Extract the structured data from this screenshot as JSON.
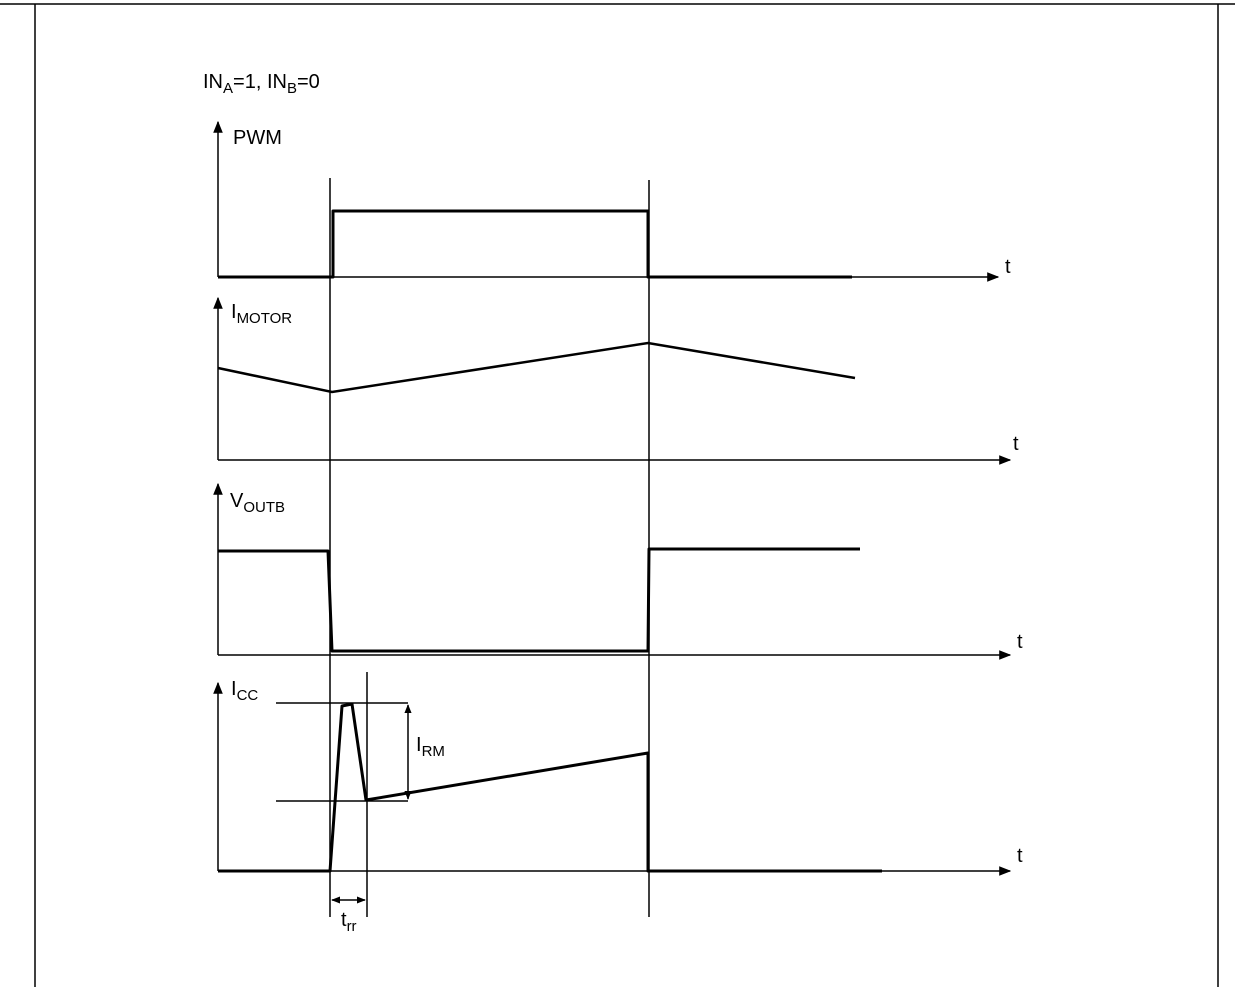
{
  "condition": {
    "in_a": "IN",
    "in_a_sub": "A",
    "in_a_val": "=1, ",
    "in_b": "IN",
    "in_b_sub": "B",
    "in_b_val": "=0"
  },
  "traces": {
    "pwm": {
      "label": "PWM"
    },
    "imotor": {
      "label": "I",
      "sub": "MOTOR"
    },
    "voutb": {
      "label": "V",
      "sub": "OUTB"
    },
    "icc": {
      "label": "I",
      "sub": "CC"
    }
  },
  "time_label": "t",
  "irm": {
    "label": "I",
    "sub": "RM"
  },
  "trr": {
    "label": "t",
    "sub": "rr"
  }
}
